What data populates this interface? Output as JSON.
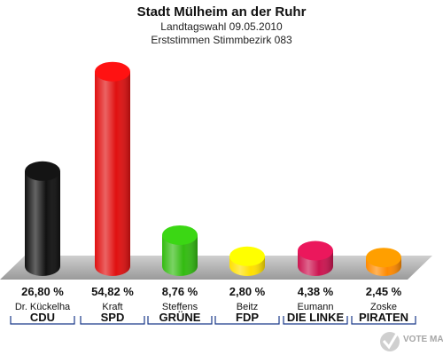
{
  "header": {
    "title": "Stadt Mülheim an der Ruhr",
    "subtitle1": "Landtagswahl 09.05.2010",
    "subtitle2": "Erststimmen Stimmbezirk 083"
  },
  "chart_data": {
    "type": "bar",
    "title": "Stadt Mülheim an der Ruhr",
    "categories": [
      "CDU",
      "SPD",
      "GRÜNE",
      "FDP",
      "DIE LINKE",
      "PIRATEN"
    ],
    "candidates": [
      "Dr. Kückelha",
      "Kraft",
      "Steffens",
      "Beitz",
      "Eumann",
      "Zoske"
    ],
    "values": [
      26.8,
      54.82,
      8.76,
      2.8,
      4.38,
      2.45
    ],
    "value_labels": [
      "26,80 %",
      "54,82 %",
      "8,76 %",
      "2,80 %",
      "4,38 %",
      "2,45 %"
    ],
    "colors": [
      "#111111",
      "#e01010",
      "#33bb11",
      "#ffe000",
      "#cc1450",
      "#ff8a00"
    ],
    "ylim": [
      0,
      60
    ],
    "grid": false,
    "legend": "none"
  },
  "watermark": {
    "text": "VOTE MANAGER"
  }
}
